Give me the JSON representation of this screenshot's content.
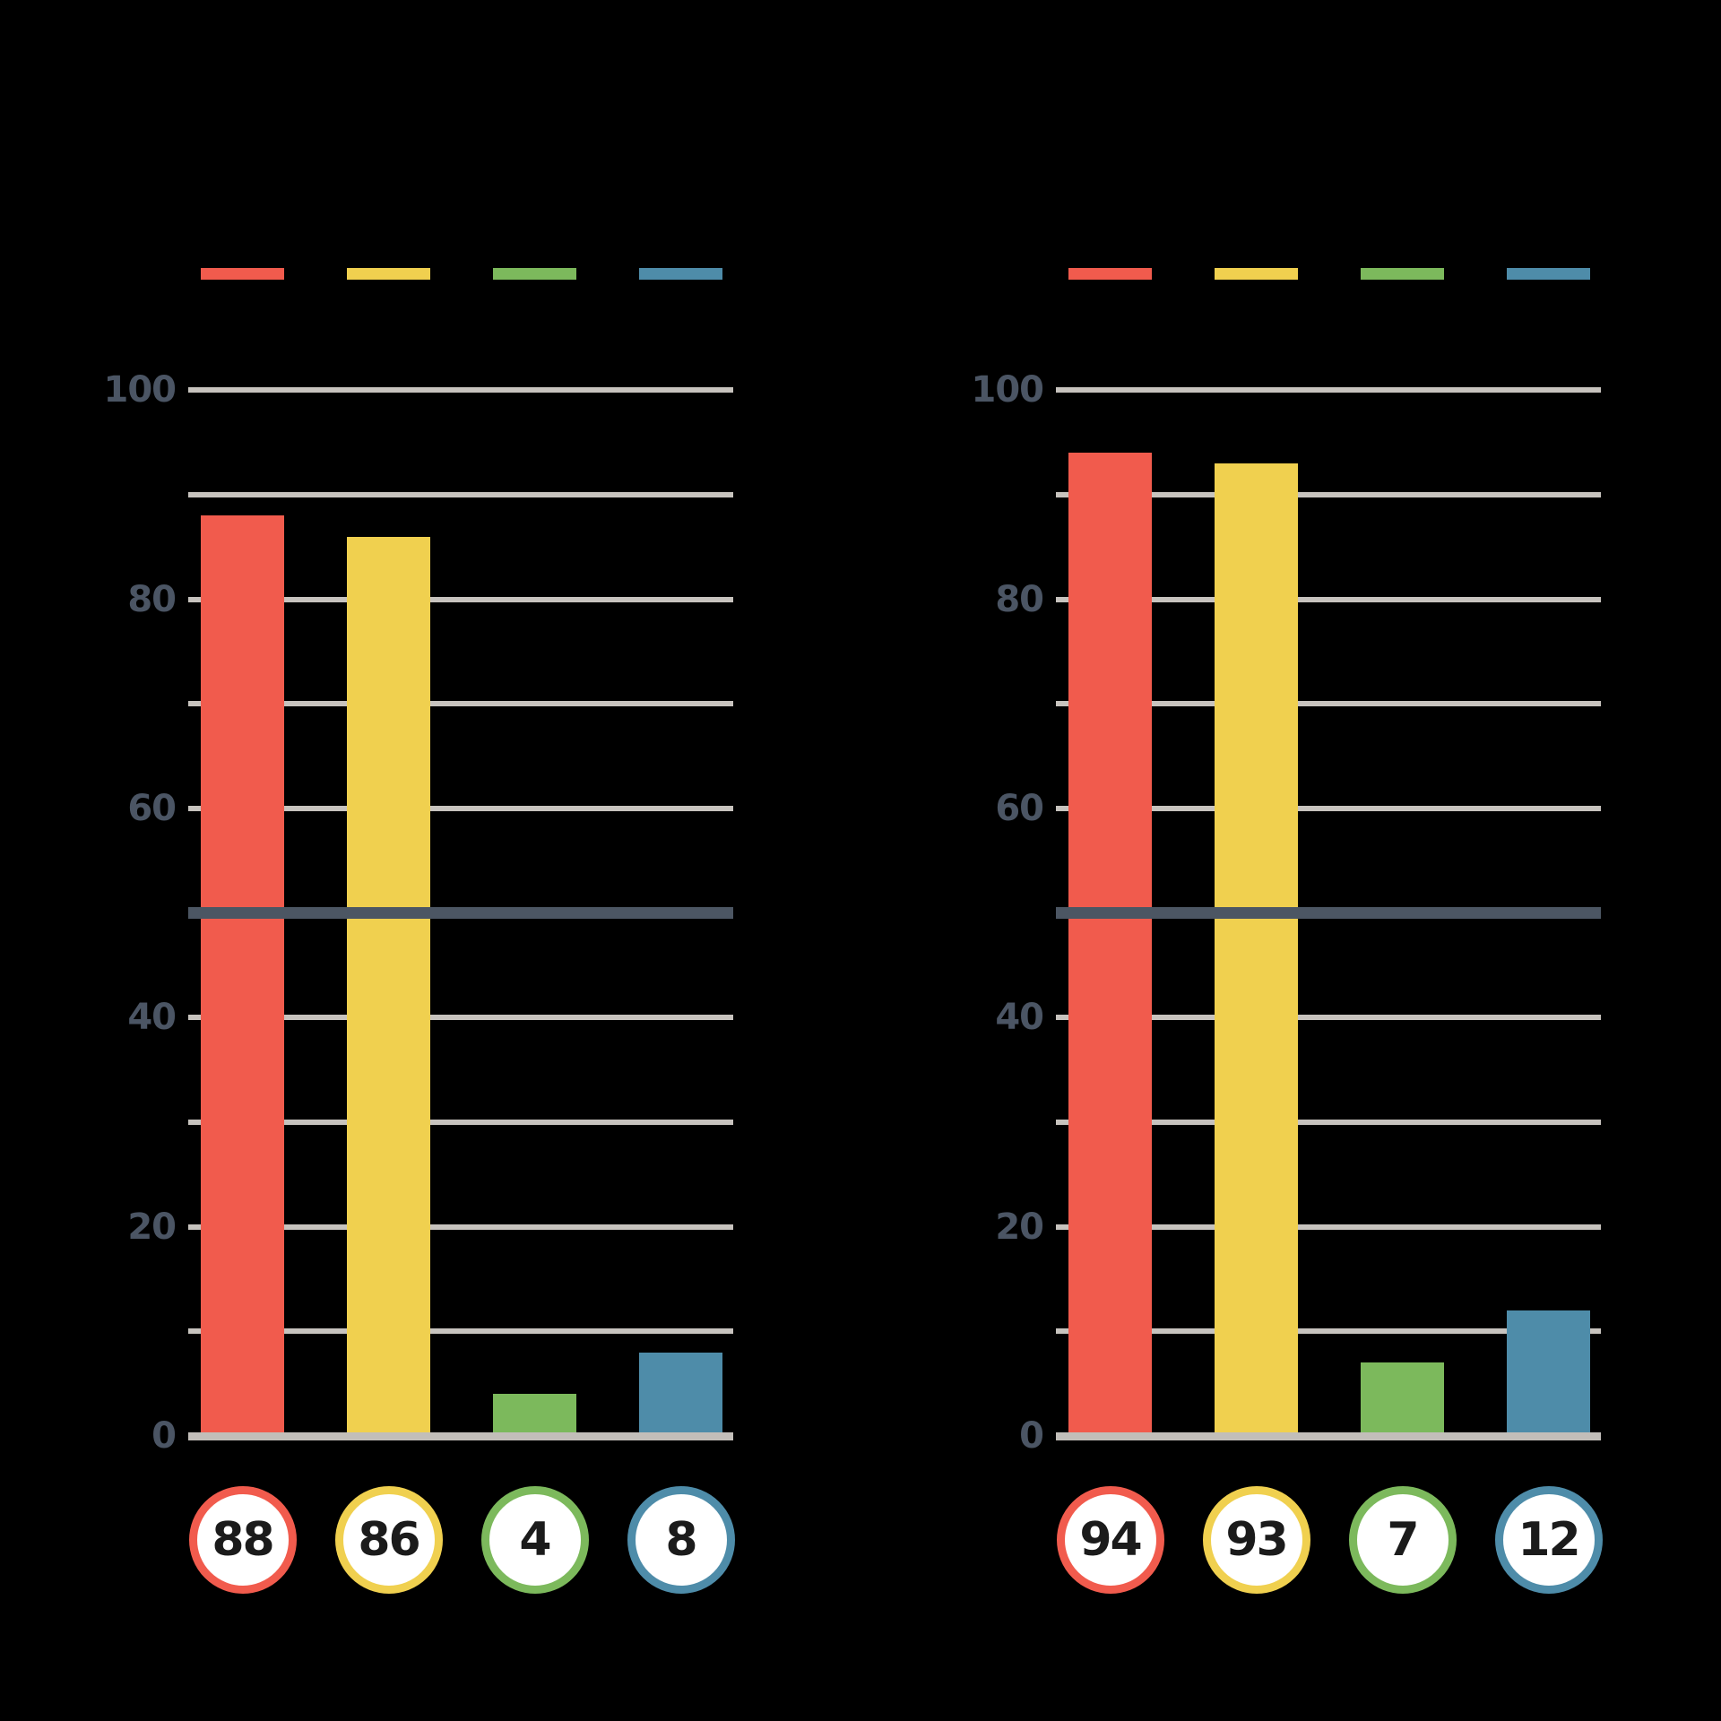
{
  "canvas": {
    "background": "#000000"
  },
  "colors": {
    "series": [
      {
        "name": "red",
        "hex": "#F15B4D"
      },
      {
        "name": "yellow",
        "hex": "#F0D04F"
      },
      {
        "name": "green",
        "hex": "#7CB95C"
      },
      {
        "name": "blue",
        "hex": "#4E8CA9"
      }
    ],
    "gridline": "#C7C3BE",
    "baseline": "#C2BEB9",
    "reference_line": "#4C5663",
    "axis_label": "#4B5564",
    "badge_fill": "#FFFFFF",
    "badge_text": "#1B1B1B"
  },
  "chart_data": [
    {
      "type": "bar",
      "position": "left",
      "title": "",
      "categories": [
        "red",
        "yellow",
        "green",
        "blue"
      ],
      "values": [
        88,
        86,
        4,
        8
      ],
      "data_labels": [
        "88",
        "86",
        "4",
        "8"
      ],
      "ylim": [
        0,
        100
      ],
      "ytick_values": [
        0,
        20,
        40,
        60,
        80,
        100
      ],
      "ytick_labels": [
        "0",
        "20",
        "40",
        "60",
        "80",
        "100"
      ],
      "gridline_step": 10,
      "reference_line_value": 50,
      "legend_position": "top",
      "grid": "on"
    },
    {
      "type": "bar",
      "position": "right",
      "title": "",
      "categories": [
        "red",
        "yellow",
        "green",
        "blue"
      ],
      "values": [
        94,
        93,
        7,
        12
      ],
      "data_labels": [
        "94",
        "93",
        "7",
        "12"
      ],
      "ylim": [
        0,
        100
      ],
      "ytick_values": [
        0,
        20,
        40,
        60,
        80,
        100
      ],
      "ytick_labels": [
        "0",
        "20",
        "40",
        "60",
        "80",
        "100"
      ],
      "gridline_step": 10,
      "reference_line_value": 50,
      "legend_position": "top",
      "grid": "on"
    }
  ]
}
